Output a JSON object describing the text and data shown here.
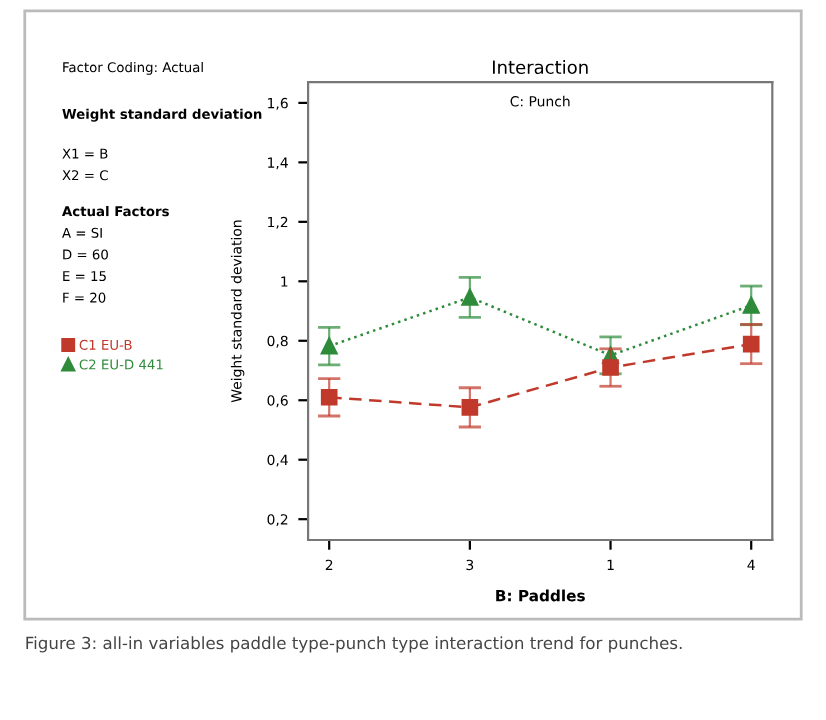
{
  "chart_data": {
    "type": "line",
    "title": "Interaction",
    "subtitle": "C: Punch",
    "xlabel": "B: Paddles",
    "ylabel": "Weight standard deviation",
    "categories": [
      "2",
      "3",
      "1",
      "4"
    ],
    "series": [
      {
        "name": "C1 EU-B",
        "color": "#c0392b",
        "marker": "square",
        "line_style": "dashed",
        "values": [
          0.61,
          0.576,
          0.71,
          0.789
        ],
        "errors": [
          0.063,
          0.066,
          0.063,
          0.066
        ]
      },
      {
        "name": "C2 EU-D 441",
        "color": "#2e8b3a",
        "marker": "triangle",
        "line_style": "dotted",
        "values": [
          0.782,
          0.946,
          0.751,
          0.919
        ],
        "errors": [
          0.063,
          0.067,
          0.062,
          0.065
        ]
      }
    ],
    "ylim": [
      0.13,
      1.67
    ],
    "yticks": [
      {
        "value": 0.2,
        "label": "0,2"
      },
      {
        "value": 0.4,
        "label": "0,4"
      },
      {
        "value": 0.6,
        "label": "0,6"
      },
      {
        "value": 0.8,
        "label": "0,8"
      },
      1,
      {
        "value": 1.2,
        "label": "1,2"
      },
      {
        "value": 1.4,
        "label": "1,4"
      },
      {
        "value": 1.6,
        "label": "1,6"
      }
    ],
    "grid": false,
    "legend": "left",
    "annotations": [
      "Factor Coding: Actual",
      "Weight standard deviation",
      "X1 = B",
      "X2 = C",
      "Actual Factors",
      "A = SI",
      "D = 60",
      "E = 15",
      "F = 20",
      "Figure 3: all-in variables paddle type-punch type interaction trend for punches."
    ]
  }
}
